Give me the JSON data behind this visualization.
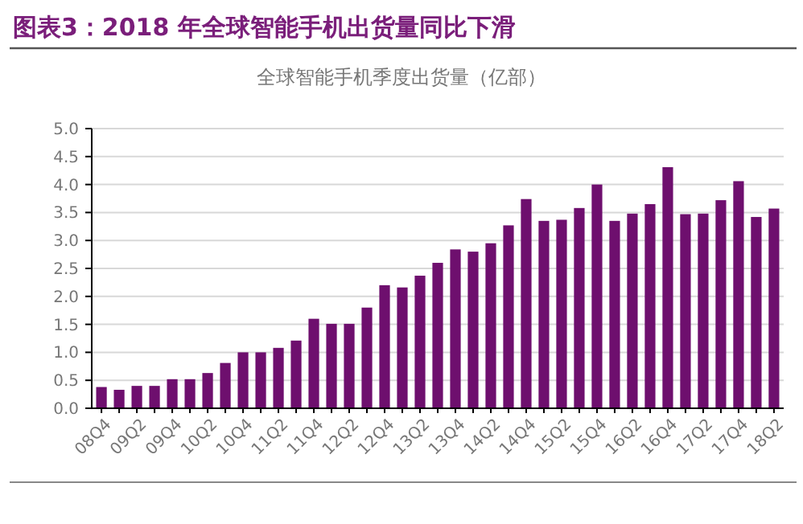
{
  "chart_data": {
    "type": "bar",
    "title": "图表3：2018 年全球智能手机出货量同比下滑",
    "subtitle": "全球智能手机季度出货量（亿部）",
    "categories": [
      "08Q4",
      null,
      "09Q2",
      null,
      "09Q4",
      null,
      "10Q2",
      null,
      "10Q4",
      null,
      "11Q2",
      null,
      "11Q4",
      null,
      "12Q2",
      null,
      "12Q4",
      null,
      "13Q2",
      null,
      "13Q4",
      null,
      "14Q2",
      null,
      "14Q4",
      null,
      "15Q2",
      null,
      "15Q4",
      null,
      "16Q2",
      null,
      "16Q4",
      null,
      "17Q2",
      null,
      "17Q4",
      null,
      "18Q2"
    ],
    "values": [
      0.38,
      0.33,
      0.4,
      0.4,
      0.52,
      0.52,
      0.63,
      0.81,
      1.0,
      1.0,
      1.08,
      1.21,
      1.6,
      1.51,
      1.51,
      1.8,
      2.2,
      2.16,
      2.37,
      2.6,
      2.84,
      2.8,
      2.95,
      3.27,
      3.74,
      3.35,
      3.37,
      3.58,
      4.0,
      3.35,
      3.48,
      3.65,
      4.31,
      3.47,
      3.48,
      3.72,
      4.06,
      3.42,
      3.57
    ],
    "color": "#6e0f6e",
    "ylim": [
      0,
      5
    ],
    "yticks": [
      {
        "value": 0,
        "label": "0.0"
      },
      {
        "value": 0.5,
        "label": "0.5"
      },
      {
        "value": 1,
        "label": "1.0"
      },
      {
        "value": 1.5,
        "label": "1.5"
      },
      {
        "value": 2,
        "label": "2.0"
      },
      {
        "value": 2.5,
        "label": "2.5"
      },
      {
        "value": 3,
        "label": "3.0"
      },
      {
        "value": 3.5,
        "label": "3.5"
      },
      {
        "value": 4,
        "label": "4.0"
      },
      {
        "value": 4.5,
        "label": "4.5"
      },
      {
        "value": 5,
        "label": "5.0"
      }
    ],
    "grid": "y"
  }
}
